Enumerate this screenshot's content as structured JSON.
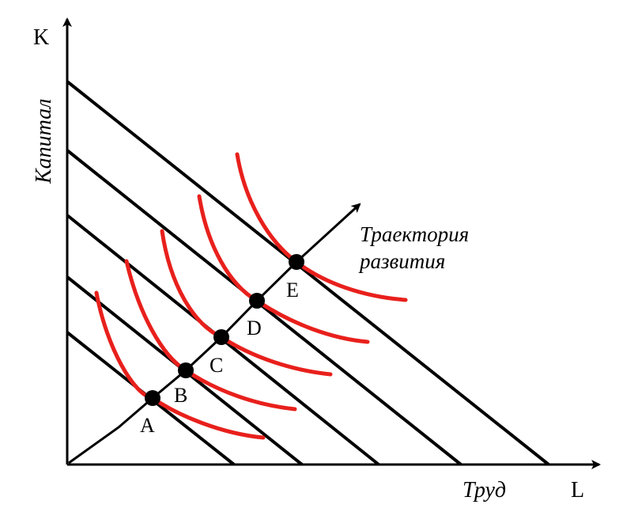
{
  "axes": {
    "y_letter": "K",
    "x_letter": "L",
    "y_title": "Капитал",
    "x_title": "Труд"
  },
  "expansion_path": {
    "label_line1": "Траектория",
    "label_line2": "развития"
  },
  "points": [
    "A",
    "B",
    "C",
    "D",
    "E"
  ],
  "colors": {
    "isocost": "#000000",
    "isoquant": "#e8201c",
    "axis": "#000000",
    "point": "#000000"
  }
}
